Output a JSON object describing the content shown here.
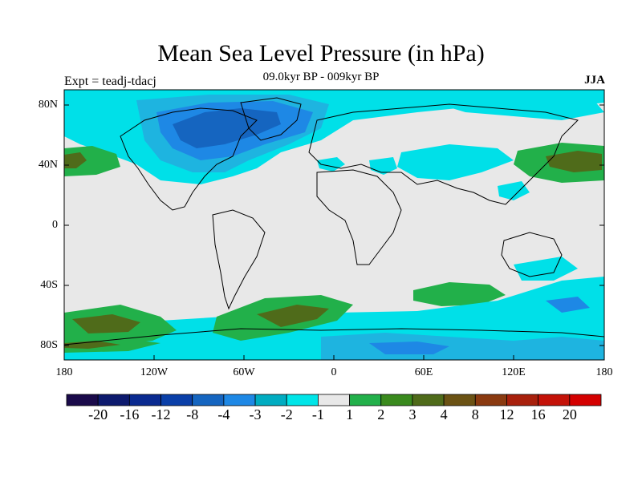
{
  "title": "Mean Sea Level Pressure (in hPa)",
  "subtitle": "09.0kyr BP - 009kyr BP",
  "experiment_label": "Expt = teadj-tdacj",
  "season_label": "JJA",
  "lat_ticks": [
    "80N",
    "40N",
    "0",
    "40S",
    "80S"
  ],
  "lon_ticks": [
    "180",
    "120W",
    "60W",
    "0",
    "60E",
    "120E",
    "180"
  ],
  "colorbar": {
    "labels": [
      "-20",
      "-16",
      "-12",
      "-8",
      "-4",
      "-3",
      "-2",
      "-1",
      "1",
      "2",
      "3",
      "4",
      "8",
      "12",
      "16",
      "20"
    ],
    "colors": [
      "#1a0a4a",
      "#0d1a6e",
      "#0a2a90",
      "#0a3fa8",
      "#1565c0",
      "#1e88e5",
      "#00acc1",
      "#00e5e8",
      "#e8e8e8",
      "#22b04a",
      "#3a8a1e",
      "#4f6b1a",
      "#6b5214",
      "#8a3a10",
      "#a8200c",
      "#c41208",
      "#d40000"
    ]
  },
  "colors": {
    "neutral": "#e8e8e8",
    "cyan": "#00e0e8",
    "light_blue": "#1eb4e0",
    "mid_blue": "#1e88e5",
    "dark_blue": "#1565c0",
    "green": "#22b04a",
    "dark_green": "#3a8a1e",
    "olive": "#4f6b1a"
  }
}
